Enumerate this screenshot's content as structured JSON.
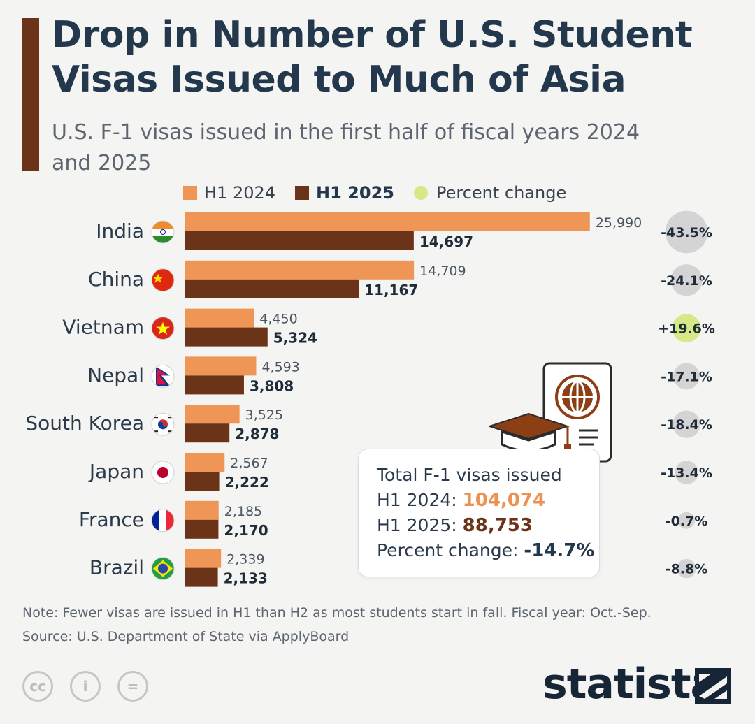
{
  "header": {
    "title_line1": "Drop in Number of U.S. Student",
    "title_line2": "Visas Issued to Much of Asia",
    "subtitle": "U.S. F-1 visas issued in the first half of fiscal years 2024 and 2025"
  },
  "legend": {
    "h1_2024": "H1 2024",
    "h1_2025": "H1 2025",
    "pct": "Percent change"
  },
  "colors": {
    "h1_2024": "#ef9556",
    "h1_2025": "#6b3318",
    "pct_negative": "#d4d4d4",
    "pct_positive": "#d5ea86"
  },
  "chart_data": {
    "type": "bar",
    "orientation": "horizontal",
    "title": "Drop in Number of U.S. Student Visas Issued to Much of Asia",
    "subtitle": "U.S. F-1 visas issued in the first half of fiscal years 2024 and 2025",
    "categories": [
      "India",
      "China",
      "Vietnam",
      "Nepal",
      "South Korea",
      "Japan",
      "France",
      "Brazil"
    ],
    "series": [
      {
        "name": "H1 2024",
        "values": [
          25990,
          14709,
          4450,
          4593,
          3525,
          2567,
          2185,
          2339
        ],
        "labels": [
          "25,990",
          "14,709",
          "4,450",
          "4,593",
          "3,525",
          "2,567",
          "2,185",
          "2,339"
        ]
      },
      {
        "name": "H1 2025",
        "values": [
          14697,
          11167,
          5324,
          3808,
          2878,
          2222,
          2170,
          2133
        ],
        "labels": [
          "14,697",
          "11,167",
          "5,324",
          "3,808",
          "2,878",
          "2,222",
          "2,170",
          "2,133"
        ]
      }
    ],
    "percent_change": [
      -43.5,
      -24.1,
      19.6,
      -17.1,
      -18.4,
      -13.4,
      -0.7,
      -8.8
    ],
    "percent_change_labels": [
      "-43.5%",
      "-24.1%",
      "+19.6%",
      "-17.1%",
      "-18.4%",
      "-13.4%",
      "-0.7%",
      "-8.8%"
    ],
    "xlim": [
      0,
      26000
    ],
    "legend_position": "top"
  },
  "flags": [
    "india-flag-icon",
    "china-flag-icon",
    "vietnam-flag-icon",
    "nepal-flag-icon",
    "south-korea-flag-icon",
    "japan-flag-icon",
    "france-flag-icon",
    "brazil-flag-icon"
  ],
  "summary": {
    "title": "Total F-1 visas issued",
    "h1_2024_label": "H1 2024:",
    "h1_2024_value": "104,074",
    "h1_2025_label": "H1 2025:",
    "h1_2025_value": "88,753",
    "pct_label": "Percent change:",
    "pct_value": "-14.7%"
  },
  "footer": {
    "note": "Note: Fewer visas are issued in H1 than H2 as most students start in fall. Fiscal year: Oct.-Sep.",
    "source": "Source: U.S. Department of State via ApplyBoard",
    "cc_label": "cc",
    "by_label": "i",
    "nd_label": "=",
    "brand": "statista"
  }
}
